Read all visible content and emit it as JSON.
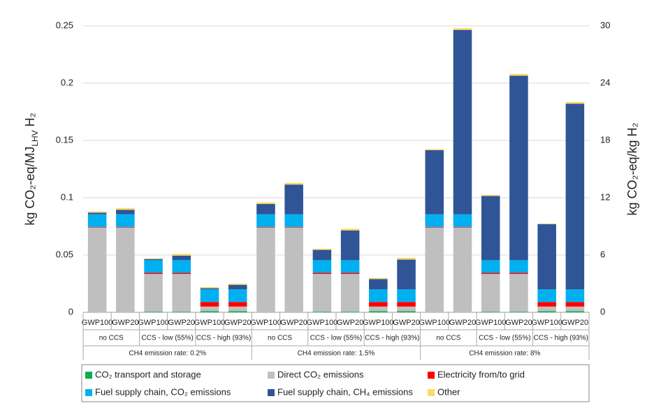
{
  "chart_data": {
    "type": "stacked-bar",
    "ylabel_parts": [
      "kg CO₂-eq/MJ",
      "LHV",
      " H₂"
    ],
    "y2label": "kg CO₂-eq/kg H₂",
    "categories": [
      "GWP100",
      "GWP20",
      "GWP100",
      "GWP20",
      "GWP100",
      "GWP20",
      "GWP100",
      "GWP20",
      "GWP100",
      "GWP20",
      "GWP100",
      "GWP20",
      "GWP100",
      "GWP20",
      "GWP100",
      "GWP20",
      "GWP100",
      "GWP20"
    ],
    "groups": [
      "no CCS",
      "CCS - low (55%)",
      "CCS - high (93%)",
      "no CCS",
      "CCS - low (55%)",
      "CCS - high (93%)",
      "no CCS",
      "CCS - low (55%)",
      "CCS - high (93%)"
    ],
    "supergroups": [
      "CH4 emission rate: 0.2%",
      "CH4 emission rate: 1.5%",
      "CH4 emission rate: 8%"
    ],
    "series": [
      {
        "name": "CO₂ transport and storage",
        "color": "#00b050",
        "values": [
          0,
          0,
          0.0005,
          0.0005,
          0.001,
          0.001,
          0,
          0,
          0.0005,
          0.0005,
          0.001,
          0.001,
          0,
          0,
          0.0005,
          0.0005,
          0.001,
          0.001
        ]
      },
      {
        "name": "Direct CO₂ emissions",
        "color": "#bfbfbf",
        "values": [
          0.074,
          0.074,
          0.033,
          0.033,
          0.004,
          0.004,
          0.074,
          0.074,
          0.033,
          0.033,
          0.004,
          0.004,
          0.074,
          0.074,
          0.033,
          0.033,
          0.004,
          0.004
        ]
      },
      {
        "name": "Electricity from/to grid",
        "color": "#ff0000",
        "values": [
          0.0005,
          0.0005,
          0.001,
          0.001,
          0.004,
          0.004,
          0.0005,
          0.0005,
          0.001,
          0.001,
          0.004,
          0.004,
          0.0005,
          0.0005,
          0.001,
          0.001,
          0.004,
          0.004
        ]
      },
      {
        "name": "Fuel supply chain, CO₂ emissions",
        "color": "#00b0f0",
        "values": [
          0.011,
          0.011,
          0.011,
          0.011,
          0.011,
          0.011,
          0.011,
          0.011,
          0.011,
          0.011,
          0.011,
          0.011,
          0.011,
          0.011,
          0.011,
          0.011,
          0.011,
          0.011
        ]
      },
      {
        "name": "Fuel supply chain, CH₄ emissions",
        "color": "#2f5597",
        "values": [
          0.0015,
          0.004,
          0.001,
          0.004,
          0.001,
          0.004,
          0.009,
          0.026,
          0.009,
          0.026,
          0.009,
          0.026,
          0.056,
          0.161,
          0.056,
          0.161,
          0.057,
          0.162
        ]
      },
      {
        "name": "Other",
        "color": "#ffd966",
        "values": [
          0.001,
          0.0015,
          0.0005,
          0.0015,
          0.001,
          0.001,
          0.0015,
          0.0015,
          0.001,
          0.0015,
          0.001,
          0.0015,
          0.001,
          0.0015,
          0.001,
          0.0015,
          0.0005,
          0.0015
        ]
      }
    ],
    "ylim": [
      0,
      0.25
    ],
    "yticks": [
      0,
      0.05,
      0.1,
      0.15,
      0.2,
      0.25
    ],
    "y2lim": [
      0,
      30
    ],
    "y2ticks": [
      0,
      6,
      12,
      18,
      24,
      30
    ],
    "grid": true
  }
}
